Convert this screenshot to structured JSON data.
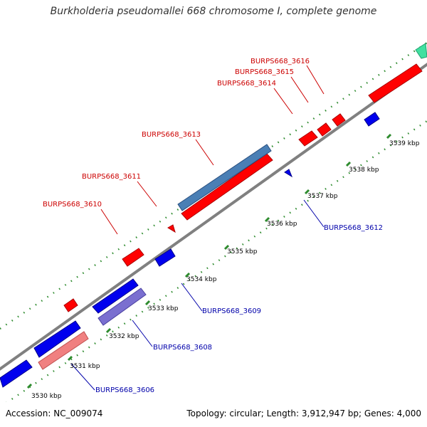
{
  "title": "Burkholderia pseudomallei 668 chromosome I, complete genome",
  "footer": {
    "accession": "Accession: NC_009074",
    "summary": "Topology: circular; Length: 3,912,947 bp; Genes: 4,000"
  },
  "colors": {
    "backbone": "#808080",
    "tick_mark": "#2e8b2e",
    "forward_label": "#cc0000",
    "reverse_label": "#0000aa",
    "forward_gene": "#ff0000",
    "forward_gene_light": "#f08080",
    "reverse_gene": "#0000ee",
    "reverse_gene_light": "#7a6fd0",
    "highlight_gene": "#4a7fb5",
    "accent_gene": "#40e0a0"
  },
  "scale": {
    "unit": "kbp",
    "ticks": [
      "3530 kbp",
      "3531 kbp",
      "3532 kbp",
      "3533 kbp",
      "3534 kbp",
      "3535 kbp",
      "3536 kbp",
      "3537 kbp",
      "3538 kbp",
      "3539 kbp"
    ]
  },
  "genes": {
    "forward": [
      "BURPS668_3610",
      "BURPS668_3611",
      "BURPS668_3613",
      "BURPS668_3614",
      "BURPS668_3615",
      "BURPS668_3616"
    ],
    "reverse": [
      "BURPS668_3606",
      "BURPS668_3608",
      "BURPS668_3609",
      "BURPS668_3612"
    ]
  }
}
